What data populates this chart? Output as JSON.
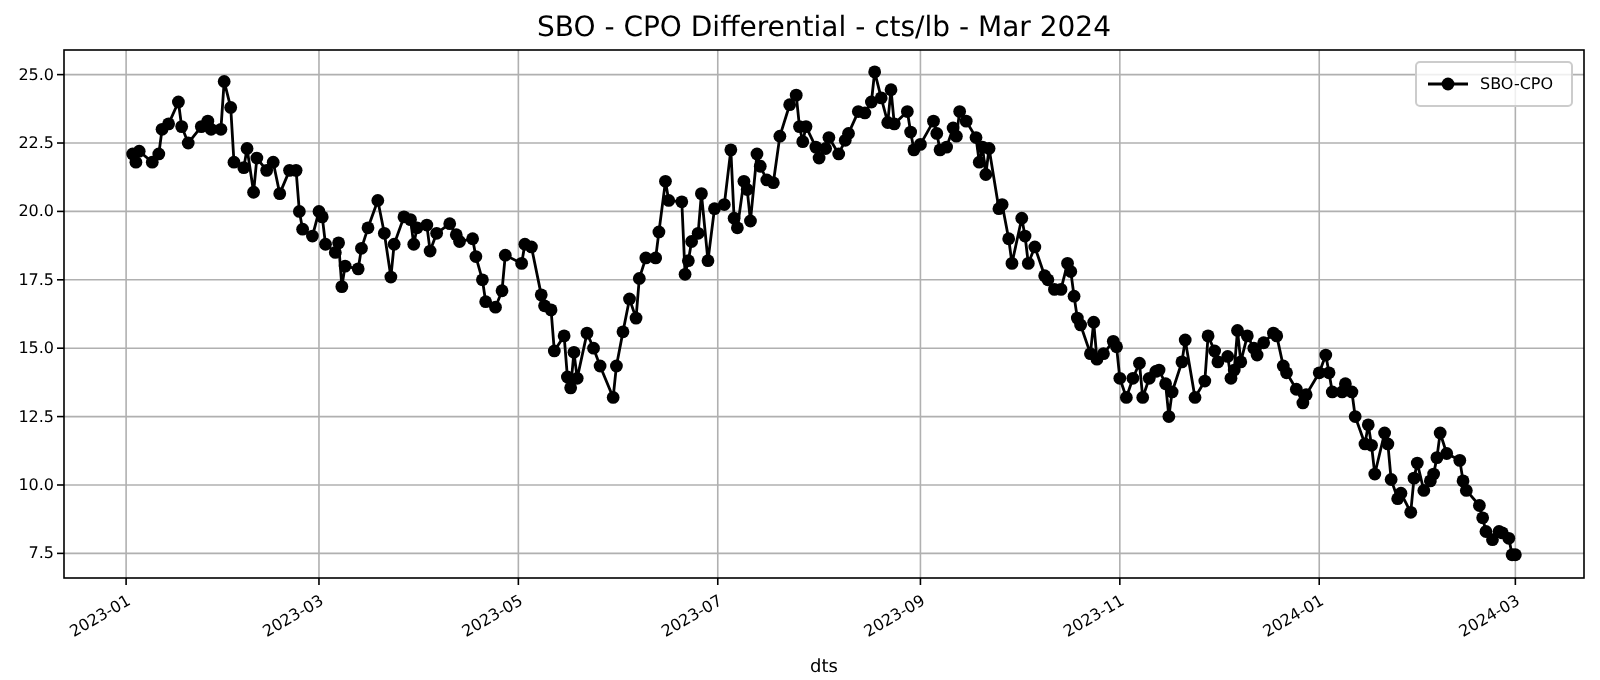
{
  "chart_data": {
    "type": "line",
    "title": "SBO - CPO Differential - cts/lb - Mar 2024",
    "xlabel": "dts",
    "x": [
      "2023-01-03",
      "2023-01-04",
      "2023-01-05",
      "2023-01-09",
      "2023-01-11",
      "2023-01-12",
      "2023-01-14",
      "2023-01-17",
      "2023-01-18",
      "2023-01-20",
      "2023-01-24",
      "2023-01-26",
      "2023-01-27",
      "2023-01-30",
      "2023-01-31",
      "2023-02-02",
      "2023-02-03",
      "2023-02-06",
      "2023-02-07",
      "2023-02-09",
      "2023-02-10",
      "2023-02-13",
      "2023-02-15",
      "2023-02-17",
      "2023-02-20",
      "2023-02-22",
      "2023-02-23",
      "2023-02-24",
      "2023-02-27",
      "2023-03-01",
      "2023-03-02",
      "2023-03-03",
      "2023-03-06",
      "2023-03-07",
      "2023-03-08",
      "2023-03-09",
      "2023-03-13",
      "2023-03-14",
      "2023-03-16",
      "2023-03-19",
      "2023-03-21",
      "2023-03-23",
      "2023-03-24",
      "2023-03-27",
      "2023-03-29",
      "2023-03-30",
      "2023-03-31",
      "2023-04-03",
      "2023-04-04",
      "2023-04-06",
      "2023-04-10",
      "2023-04-12",
      "2023-04-13",
      "2023-04-17",
      "2023-04-18",
      "2023-04-20",
      "2023-04-21",
      "2023-04-24",
      "2023-04-26",
      "2023-04-27",
      "2023-05-02",
      "2023-05-03",
      "2023-05-05",
      "2023-05-08",
      "2023-05-09",
      "2023-05-11",
      "2023-05-12",
      "2023-05-15",
      "2023-05-16",
      "2023-05-17",
      "2023-05-18",
      "2023-05-19",
      "2023-05-22",
      "2023-05-24",
      "2023-05-26",
      "2023-05-30",
      "2023-05-31",
      "2023-06-02",
      "2023-06-04",
      "2023-06-06",
      "2023-06-07",
      "2023-06-09",
      "2023-06-12",
      "2023-06-13",
      "2023-06-15",
      "2023-06-16",
      "2023-06-20",
      "2023-06-21",
      "2023-06-22",
      "2023-06-23",
      "2023-06-25",
      "2023-06-26",
      "2023-06-28",
      "2023-06-30",
      "2023-07-03",
      "2023-07-05",
      "2023-07-06",
      "2023-07-07",
      "2023-07-09",
      "2023-07-10",
      "2023-07-11",
      "2023-07-13",
      "2023-07-14",
      "2023-07-16",
      "2023-07-18",
      "2023-07-20",
      "2023-07-23",
      "2023-07-25",
      "2023-07-26",
      "2023-07-27",
      "2023-07-28",
      "2023-07-31",
      "2023-08-01",
      "2023-08-03",
      "2023-08-04",
      "2023-08-07",
      "2023-08-09",
      "2023-08-10",
      "2023-08-13",
      "2023-08-15",
      "2023-08-17",
      "2023-08-18",
      "2023-08-20",
      "2023-08-22",
      "2023-08-23",
      "2023-08-24",
      "2023-08-28",
      "2023-08-29",
      "2023-08-30",
      "2023-09-01",
      "2023-09-05",
      "2023-09-06",
      "2023-09-07",
      "2023-09-09",
      "2023-09-11",
      "2023-09-12",
      "2023-09-13",
      "2023-09-15",
      "2023-09-18",
      "2023-09-19",
      "2023-09-20",
      "2023-09-21",
      "2023-09-22",
      "2023-09-25",
      "2023-09-26",
      "2023-09-28",
      "2023-09-29",
      "2023-10-02",
      "2023-10-03",
      "2023-10-04",
      "2023-10-06",
      "2023-10-09",
      "2023-10-10",
      "2023-10-12",
      "2023-10-14",
      "2023-10-16",
      "2023-10-17",
      "2023-10-18",
      "2023-10-19",
      "2023-10-20",
      "2023-10-23",
      "2023-10-24",
      "2023-10-25",
      "2023-10-27",
      "2023-10-30",
      "2023-10-31",
      "2023-11-01",
      "2023-11-03",
      "2023-11-05",
      "2023-11-07",
      "2023-11-08",
      "2023-11-10",
      "2023-11-12",
      "2023-11-13",
      "2023-11-15",
      "2023-11-16",
      "2023-11-17",
      "2023-11-20",
      "2023-11-21",
      "2023-11-24",
      "2023-11-27",
      "2023-11-28",
      "2023-11-30",
      "2023-12-01",
      "2023-12-04",
      "2023-12-05",
      "2023-12-06",
      "2023-12-07",
      "2023-12-08",
      "2023-12-10",
      "2023-12-12",
      "2023-12-13",
      "2023-12-15",
      "2023-12-18",
      "2023-12-19",
      "2023-12-21",
      "2023-12-22",
      "2023-12-25",
      "2023-12-27",
      "2023-12-28",
      "2024-01-01",
      "2024-01-03",
      "2024-01-04",
      "2024-01-05",
      "2024-01-08",
      "2024-01-09",
      "2024-01-11",
      "2024-01-12",
      "2024-01-15",
      "2024-01-16",
      "2024-01-17",
      "2024-01-18",
      "2024-01-21",
      "2024-01-22",
      "2024-01-23",
      "2024-01-25",
      "2024-01-26",
      "2024-01-29",
      "2024-01-30",
      "2024-01-31",
      "2024-02-02",
      "2024-02-04",
      "2024-02-05",
      "2024-02-06",
      "2024-02-07",
      "2024-02-09",
      "2024-02-13",
      "2024-02-14",
      "2024-02-15",
      "2024-02-19",
      "2024-02-20",
      "2024-02-21",
      "2024-02-23",
      "2024-02-25",
      "2024-02-26",
      "2024-02-28",
      "2024-02-29",
      "2024-03-01"
    ],
    "series": [
      {
        "name": "SBO-CPO",
        "color": "#000000",
        "values": [
          22.1,
          21.8,
          22.2,
          21.8,
          22.1,
          23.0,
          23.2,
          24.0,
          23.1,
          22.5,
          23.1,
          23.3,
          23.0,
          23.0,
          24.75,
          23.8,
          21.8,
          21.6,
          22.3,
          20.7,
          21.95,
          21.5,
          21.8,
          20.65,
          21.5,
          21.5,
          20.0,
          19.35,
          19.1,
          20.0,
          19.8,
          18.8,
          18.5,
          18.85,
          17.25,
          18.0,
          17.9,
          18.65,
          19.4,
          20.4,
          19.2,
          17.6,
          18.8,
          19.8,
          19.7,
          18.8,
          19.4,
          19.5,
          18.55,
          19.2,
          19.55,
          19.15,
          18.9,
          19.0,
          18.35,
          17.5,
          16.7,
          16.5,
          17.1,
          18.4,
          18.1,
          18.8,
          18.7,
          16.95,
          16.55,
          16.4,
          14.9,
          15.45,
          13.95,
          13.55,
          14.85,
          13.9,
          15.55,
          15.0,
          14.35,
          13.2,
          14.35,
          15.6,
          16.8,
          16.1,
          17.55,
          18.3,
          18.3,
          19.25,
          21.1,
          20.4,
          20.35,
          17.7,
          18.2,
          18.9,
          19.2,
          20.65,
          18.2,
          20.1,
          20.25,
          22.25,
          19.75,
          19.4,
          21.1,
          20.8,
          19.65,
          22.1,
          21.65,
          21.15,
          21.05,
          22.75,
          23.9,
          24.25,
          23.1,
          22.55,
          23.1,
          22.35,
          21.95,
          22.3,
          22.7,
          22.1,
          22.6,
          22.85,
          23.65,
          23.6,
          24.0,
          25.1,
          24.15,
          23.25,
          24.45,
          23.2,
          23.65,
          22.9,
          22.25,
          22.45,
          23.3,
          22.85,
          22.25,
          22.35,
          23.05,
          22.75,
          23.65,
          23.3,
          22.7,
          21.8,
          22.35,
          21.35,
          22.3,
          20.1,
          20.25,
          19.0,
          18.1,
          19.75,
          19.1,
          18.1,
          18.7,
          17.65,
          17.5,
          17.15,
          17.15,
          18.1,
          17.8,
          16.9,
          16.1,
          15.85,
          14.8,
          15.95,
          14.6,
          14.8,
          15.25,
          15.05,
          13.9,
          13.2,
          13.9,
          14.45,
          13.2,
          13.9,
          14.15,
          14.2,
          13.7,
          12.5,
          13.4,
          14.5,
          15.3,
          13.2,
          13.8,
          15.45,
          14.9,
          14.5,
          14.7,
          13.9,
          14.2,
          15.65,
          14.5,
          15.45,
          15.0,
          14.75,
          15.2,
          15.55,
          15.45,
          14.35,
          14.1,
          13.5,
          13.0,
          13.3,
          14.1,
          14.75,
          14.1,
          13.4,
          13.4,
          13.7,
          13.4,
          12.5,
          11.5,
          12.2,
          11.45,
          10.4,
          11.9,
          11.5,
          10.2,
          9.5,
          9.7,
          9.0,
          10.25,
          10.8,
          9.8,
          10.15,
          10.4,
          11.0,
          11.9,
          11.15,
          10.9,
          10.15,
          9.8,
          9.25,
          8.8,
          8.3,
          8.0,
          8.3,
          8.25,
          8.05,
          7.45,
          7.45
        ]
      }
    ],
    "xlim": [
      "2022-12-13",
      "2024-03-22"
    ],
    "xticks": [
      "2023-01",
      "2023-03",
      "2023-05",
      "2023-07",
      "2023-09",
      "2023-11",
      "2024-01",
      "2024-03"
    ],
    "ylim": [
      6.6,
      25.9
    ],
    "yticks": [
      {
        "value": 7.5,
        "label": "7.5"
      },
      {
        "value": 10,
        "label": "10.0"
      },
      {
        "value": 12.5,
        "label": "12.5"
      },
      {
        "value": 15,
        "label": "15.0"
      },
      {
        "value": 17.5,
        "label": "17.5"
      },
      {
        "value": 20,
        "label": "20.0"
      },
      {
        "value": 22.5,
        "label": "22.5"
      },
      {
        "value": 25,
        "label": "25.0"
      }
    ],
    "grid": true,
    "legend": "top right",
    "marker": "circle",
    "line_style": "solid"
  }
}
